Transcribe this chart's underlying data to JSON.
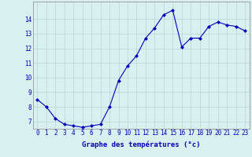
{
  "x": [
    0,
    1,
    2,
    3,
    4,
    5,
    6,
    7,
    8,
    9,
    10,
    11,
    12,
    13,
    14,
    15,
    16,
    17,
    18,
    19,
    20,
    21,
    22,
    23
  ],
  "y": [
    8.5,
    8.0,
    7.2,
    6.8,
    6.7,
    6.6,
    6.7,
    6.8,
    8.0,
    9.8,
    10.8,
    11.5,
    12.7,
    13.4,
    14.3,
    14.6,
    12.1,
    12.7,
    12.7,
    13.5,
    13.8,
    13.6,
    13.5,
    13.2
  ],
  "line_color": "#0000bb",
  "marker": "D",
  "markersize": 2.0,
  "linewidth": 0.8,
  "bg_color": "#d8f0f0",
  "grid_color": "#b8d4d4",
  "xlabel": "Graphe des températures (°c)",
  "xlabel_color": "#0000bb",
  "xlabel_fontsize": 6.5,
  "tick_color": "#0000bb",
  "tick_fontsize": 5.5,
  "ylim": [
    6.5,
    15.2
  ],
  "yticks": [
    7,
    8,
    9,
    10,
    11,
    12,
    13,
    14
  ],
  "xlim": [
    -0.5,
    23.5
  ],
  "xticks": [
    0,
    1,
    2,
    3,
    4,
    5,
    6,
    7,
    8,
    9,
    10,
    11,
    12,
    13,
    14,
    15,
    16,
    17,
    18,
    19,
    20,
    21,
    22,
    23
  ]
}
